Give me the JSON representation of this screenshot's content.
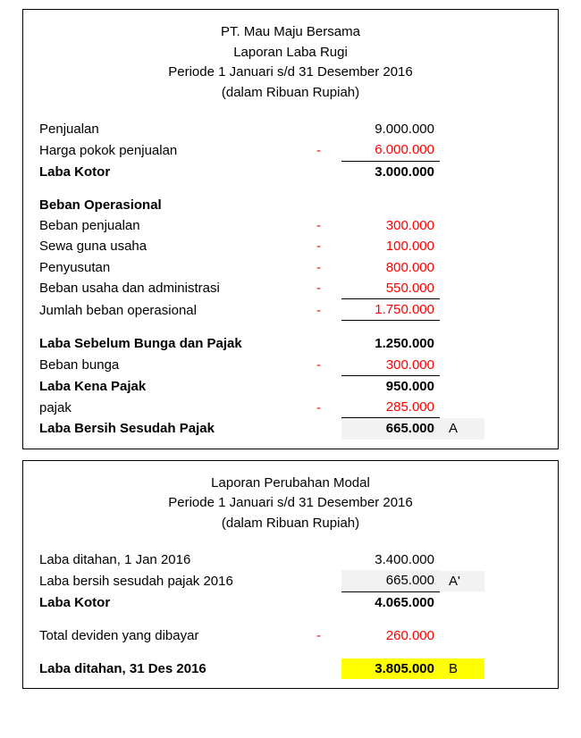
{
  "report1": {
    "header": {
      "company": "PT. Mau Maju Bersama",
      "title": "Laporan Laba Rugi",
      "period": "Periode 1 Januari s/d 31 Desember 2016",
      "unit": "(dalam Ribuan Rupiah)"
    },
    "lines": {
      "penjualan_label": "Penjualan",
      "penjualan_value": "9.000.000",
      "hpp_label": "Harga pokok penjualan",
      "hpp_sign": "-",
      "hpp_value": "6.000.000",
      "labakotor_label": "Laba Kotor",
      "labakotor_value": "3.000.000",
      "bebanop_header": "Beban Operasional",
      "bebanpenjualan_label": "Beban penjualan",
      "bebanpenjualan_sign": "-",
      "bebanpenjualan_value": "300.000",
      "sewa_label": "Sewa guna usaha",
      "sewa_sign": "-",
      "sewa_value": "100.000",
      "penyusutan_label": "Penyusutan",
      "penyusutan_sign": "-",
      "penyusutan_value": "800.000",
      "admin_label": "Beban usaha dan administrasi",
      "admin_sign": "-",
      "admin_value": "550.000",
      "jumlahop_label": "Jumlah beban operasional",
      "jumlahop_sign": "-",
      "jumlahop_value": "1.750.000",
      "ebit_label": "Laba Sebelum Bunga dan Pajak",
      "ebit_value": "1.250.000",
      "bunga_label": "Beban bunga",
      "bunga_sign": "-",
      "bunga_value": "300.000",
      "kenapajak_label": "Laba Kena Pajak",
      "kenapajak_value": "950.000",
      "pajak_label": "pajak",
      "pajak_sign": "-",
      "pajak_value": "285.000",
      "lababersih_label": "Laba Bersih Sesudah Pajak",
      "lababersih_value": "665.000",
      "lababersih_note": "A"
    }
  },
  "report2": {
    "header": {
      "title": "Laporan Perubahan Modal",
      "period": "Periode 1 Januari s/d 31 Desember 2016",
      "unit": "(dalam Ribuan Rupiah)"
    },
    "lines": {
      "retained_open_label": "Laba ditahan, 1 Jan 2016",
      "retained_open_value": "3.400.000",
      "netincome_label": "Laba bersih sesudah pajak 2016",
      "netincome_value": "665.000",
      "netincome_note": "A'",
      "labakotor_label": "Laba Kotor",
      "labakotor_value": "4.065.000",
      "dividen_label": "Total deviden yang dibayar",
      "dividen_sign": "-",
      "dividen_value": "260.000",
      "retained_close_label": "Laba ditahan, 31 Des 2016",
      "retained_close_value": "3.805.000",
      "retained_close_note": "B"
    }
  }
}
